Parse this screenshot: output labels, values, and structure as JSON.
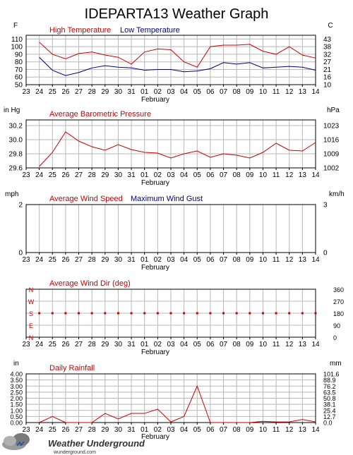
{
  "title": "IDEPARTA13 Weather Graph",
  "colors": {
    "red": "#cc0000",
    "blue": "#000080",
    "grid": "#b8b8b8",
    "axis": "#000000"
  },
  "x_axis": {
    "ticks": [
      "23",
      "24",
      "25",
      "26",
      "27",
      "28",
      "29",
      "30",
      "31",
      "01",
      "02",
      "03",
      "04",
      "05",
      "06",
      "07",
      "08",
      "09",
      "10",
      "11",
      "12",
      "13",
      "14"
    ],
    "month_label": "February"
  },
  "chart_data": [
    {
      "type": "line",
      "title": "Temperature",
      "left_unit": "F",
      "right_unit": "C",
      "left_ticks": [
        50,
        60,
        70,
        80,
        90,
        100,
        110
      ],
      "right_ticks": [
        10,
        16,
        21,
        27,
        32,
        38,
        43
      ],
      "ylim": [
        50,
        115
      ],
      "x": [
        "24",
        "25",
        "26",
        "27",
        "28",
        "29",
        "30",
        "31",
        "01",
        "02",
        "03",
        "04",
        "05",
        "06",
        "07",
        "08",
        "09",
        "10",
        "11",
        "12",
        "13",
        "14"
      ],
      "series": [
        {
          "name": "High Temperature",
          "color": "#cc0000",
          "values": [
            106,
            90,
            84,
            91,
            93,
            89,
            86,
            77,
            93,
            97,
            96,
            80,
            73,
            100,
            102,
            102,
            103,
            94,
            90,
            100,
            89,
            85
          ]
        },
        {
          "name": "Low Temperature",
          "color": "#000080",
          "values": [
            86,
            69,
            62,
            66,
            72,
            75,
            73,
            72,
            69,
            70,
            70,
            67,
            68,
            71,
            79,
            77,
            79,
            72,
            73,
            74,
            73,
            69
          ]
        }
      ]
    },
    {
      "type": "line",
      "title": "Barometric Pressure",
      "left_unit": "in Hg",
      "right_unit": "hPa",
      "left_ticks": [
        "29.6",
        "29.8",
        "30.0",
        "30.2"
      ],
      "left_tick_values": [
        29.6,
        29.8,
        30.0,
        30.2
      ],
      "right_ticks": [
        "1002",
        "1009",
        "1016",
        "1023"
      ],
      "ylim": [
        29.6,
        30.28
      ],
      "x": [
        "24",
        "25",
        "26",
        "27",
        "28",
        "29",
        "30",
        "31",
        "01",
        "02",
        "03",
        "04",
        "05",
        "06",
        "07",
        "08",
        "09",
        "10",
        "11",
        "12",
        "13",
        "14"
      ],
      "series": [
        {
          "name": "Average Barometric Pressure",
          "color": "#cc0000",
          "values": [
            29.62,
            29.82,
            30.11,
            29.98,
            29.9,
            29.85,
            29.93,
            29.86,
            29.82,
            29.81,
            29.74,
            29.8,
            29.84,
            29.75,
            29.8,
            29.78,
            29.74,
            29.82,
            29.95,
            29.85,
            29.84,
            29.96
          ]
        }
      ]
    },
    {
      "type": "line",
      "title": "Wind Speed",
      "left_unit": "mph",
      "right_unit": "km/h",
      "left_ticks": [
        "0",
        "2"
      ],
      "left_tick_values": [
        0,
        2
      ],
      "right_ticks": [
        "0",
        "3"
      ],
      "ylim": [
        0,
        2
      ],
      "series": [
        {
          "name": "Average Wind Speed",
          "color": "#cc0000",
          "values": []
        },
        {
          "name": "Maximum Wind Gust",
          "color": "#000080",
          "values": []
        }
      ]
    },
    {
      "type": "scatter",
      "title": "Wind Direction",
      "left_compass": [
        "N",
        "W",
        "S",
        "E",
        "N"
      ],
      "right_ticks": [
        "0",
        "90",
        "180",
        "270",
        "360"
      ],
      "right_tick_values": [
        0,
        90,
        180,
        270,
        360
      ],
      "ylim": [
        0,
        360
      ],
      "x": [
        "24",
        "25",
        "26",
        "27",
        "28",
        "29",
        "30",
        "31",
        "01",
        "02",
        "03",
        "04",
        "05",
        "06",
        "07",
        "08",
        "09",
        "10",
        "11",
        "12",
        "13",
        "14"
      ],
      "series": [
        {
          "name": "Average Wind Dir (deg)",
          "color": "#cc0000",
          "values": [
            180,
            180,
            180,
            180,
            180,
            180,
            180,
            180,
            180,
            180,
            180,
            180,
            180,
            180,
            180,
            180,
            180,
            180,
            180,
            180,
            180,
            180
          ]
        }
      ]
    },
    {
      "type": "line",
      "title": "Rainfall",
      "left_unit": "in",
      "right_unit": "mm",
      "left_ticks": [
        "0.00",
        "0.50",
        "1.00",
        "1.50",
        "2.00",
        "2.50",
        "3.00",
        "3.50",
        "4.00"
      ],
      "left_tick_values": [
        0,
        0.5,
        1.0,
        1.5,
        2.0,
        2.5,
        3.0,
        3.5,
        4.0
      ],
      "right_ticks": [
        "0.0",
        "12.7",
        "25.4",
        "38.1",
        "50.8",
        "63.5",
        "76.2",
        "88.9",
        "101.6"
      ],
      "ylim": [
        0,
        4.0
      ],
      "x": [
        "24",
        "25",
        "26",
        "27",
        "28",
        "29",
        "30",
        "31",
        "01",
        "02",
        "03",
        "04",
        "05",
        "06",
        "07",
        "08",
        "09",
        "10",
        "11",
        "12",
        "13",
        "14"
      ],
      "series": [
        {
          "name": "Daily Rainfall",
          "color": "#cc0000",
          "values": [
            0.0,
            0.5,
            0.0,
            0.0,
            0.0,
            0.75,
            0.3,
            0.75,
            0.75,
            1.1,
            0.05,
            0.5,
            3.0,
            0.0,
            0.0,
            0.0,
            0.0,
            0.1,
            0.05,
            0.05,
            0.25,
            0.05
          ]
        }
      ]
    }
  ],
  "branding": {
    "name": "Weather Underground",
    "url": "wunderground.com"
  }
}
